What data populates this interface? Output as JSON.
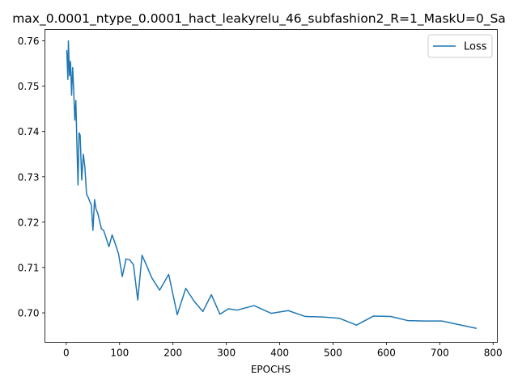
{
  "chart_data": {
    "type": "line",
    "title": "max_0.0001_ntype_0.0001_hact_leakyrelu_46_subfashion2_R=1_MaskU=0_Sa",
    "xlabel": "EPOCHS",
    "ylabel": "",
    "xlim": [
      -40,
      808
    ],
    "ylim": [
      0.6935,
      0.7625
    ],
    "xticks": [
      0,
      100,
      200,
      300,
      400,
      500,
      600,
      700,
      800
    ],
    "yticks": [
      0.7,
      0.71,
      0.72,
      0.73,
      0.74,
      0.75,
      0.76
    ],
    "ytick_labels": [
      "0.70",
      "0.71",
      "0.72",
      "0.73",
      "0.74",
      "0.75",
      "0.76"
    ],
    "grid": false,
    "legend_position": "top-right",
    "line_color": "#1f77b4",
    "series": [
      {
        "name": "Loss",
        "x": [
          1,
          3,
          4,
          6,
          8,
          10,
          12,
          14,
          16,
          18,
          20,
          22,
          24,
          26,
          29,
          32,
          35,
          38,
          41,
          44,
          47,
          50,
          53,
          56,
          59,
          62,
          66,
          70,
          74,
          80,
          86,
          92,
          98,
          105,
          112,
          119,
          126,
          134,
          142,
          150,
          160,
          175,
          192,
          208,
          224,
          240,
          256,
          272,
          288,
          304,
          320,
          352,
          384,
          416,
          448,
          480,
          512,
          544,
          576,
          608,
          640,
          672,
          704,
          736,
          768
        ],
        "y": [
          0.7578,
          0.7515,
          0.76,
          0.7523,
          0.7555,
          0.748,
          0.7541,
          0.749,
          0.7425,
          0.7468,
          0.737,
          0.7282,
          0.7397,
          0.7392,
          0.7293,
          0.735,
          0.732,
          0.7262,
          0.7255,
          0.7246,
          0.7238,
          0.7182,
          0.725,
          0.7228,
          0.722,
          0.7205,
          0.7185,
          0.7182,
          0.7168,
          0.7146,
          0.7172,
          0.7152,
          0.713,
          0.708,
          0.7119,
          0.7117,
          0.7106,
          0.7028,
          0.7127,
          0.7106,
          0.7078,
          0.705,
          0.7085,
          0.6996,
          0.7054,
          0.7025,
          0.7003,
          0.704,
          0.6997,
          0.7009,
          0.7006,
          0.7016,
          0.6999,
          0.7005,
          0.6992,
          0.6991,
          0.6988,
          0.6973,
          0.6993,
          0.6992,
          0.6983,
          0.6982,
          0.6982,
          0.6974,
          0.6966
        ]
      }
    ]
  }
}
